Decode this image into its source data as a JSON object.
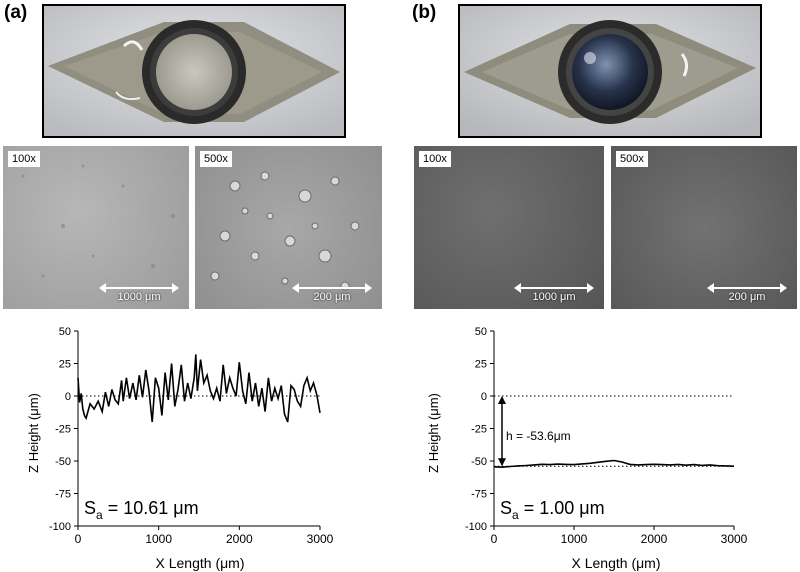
{
  "panels": [
    {
      "label": "(a)",
      "sem": [
        {
          "mag": "100x",
          "scale": "1000 μm"
        },
        {
          "mag": "500x",
          "scale": "200 μm"
        }
      ],
      "sa_label": "S",
      "sa_sub": "a",
      "sa_value": " = 10.61 μm"
    },
    {
      "label": "(b)",
      "sem": [
        {
          "mag": "100x",
          "scale": "1000 μm"
        },
        {
          "mag": "500x",
          "scale": "200 μm"
        }
      ],
      "sa_label": "S",
      "sa_sub": "a",
      "sa_value": " = 1.00 μm",
      "annotation": "h = -53.6μm"
    }
  ],
  "chart_data": [
    {
      "type": "line",
      "xlabel": "X Length (μm)",
      "ylabel": "Z Height (μm)",
      "xlim": [
        0,
        3000
      ],
      "ylim": [
        -100,
        50
      ],
      "xticks": [
        0,
        1000,
        2000,
        3000
      ],
      "yticks": [
        50,
        25,
        0,
        -25,
        -50,
        -75,
        -100
      ],
      "reference_lines": [
        0
      ],
      "series": [
        {
          "x": [
            0,
            20,
            40,
            60,
            80,
            100,
            150,
            200,
            250,
            300,
            340,
            380,
            420,
            460,
            500,
            540,
            560,
            600,
            640,
            680,
            720,
            760,
            800,
            840,
            880,
            920,
            960,
            1000,
            1040,
            1080,
            1120,
            1160,
            1200,
            1240,
            1280,
            1320,
            1360,
            1400,
            1440,
            1460,
            1480,
            1520,
            1560,
            1600,
            1640,
            1680,
            1720,
            1760,
            1800,
            1840,
            1880,
            1920,
            1960,
            2000,
            2040,
            2080,
            2120,
            2160,
            2200,
            2240,
            2280,
            2320,
            2360,
            2400,
            2440,
            2480,
            2520,
            2560,
            2600,
            2640,
            2680,
            2720,
            2760,
            2800,
            2840,
            2880,
            2920,
            2960,
            3000
          ],
          "y": [
            14,
            -5,
            2,
            -10,
            -15,
            -17,
            -6,
            -10,
            -4,
            -12,
            3,
            -8,
            5,
            -3,
            -6,
            12,
            -4,
            14,
            -2,
            10,
            -3,
            16,
            -1,
            20,
            4,
            -20,
            14,
            6,
            -15,
            18,
            -3,
            25,
            -8,
            5,
            24,
            -4,
            10,
            -2,
            14,
            32,
            4,
            28,
            10,
            16,
            4,
            -2,
            6,
            -4,
            24,
            2,
            14,
            6,
            0,
            26,
            4,
            -6,
            18,
            -4,
            10,
            -8,
            6,
            -12,
            14,
            -4,
            6,
            -2,
            8,
            -14,
            -20,
            8,
            5,
            -4,
            -8,
            8,
            14,
            4,
            10,
            1,
            -13
          ]
        }
      ]
    },
    {
      "type": "line",
      "xlabel": "X Length (μm)",
      "ylabel": "Z Height (μm)",
      "xlim": [
        0,
        3000
      ],
      "ylim": [
        -100,
        50
      ],
      "xticks": [
        0,
        1000,
        2000,
        3000
      ],
      "yticks": [
        50,
        25,
        0,
        -25,
        -50,
        -75,
        -100
      ],
      "reference_lines": [
        0,
        -54
      ],
      "series": [
        {
          "x": [
            0,
            100,
            200,
            300,
            400,
            500,
            600,
            700,
            800,
            900,
            1000,
            1100,
            1200,
            1300,
            1400,
            1500,
            1600,
            1700,
            1800,
            1900,
            2000,
            2100,
            2200,
            2300,
            2400,
            2500,
            2600,
            2700,
            2800,
            2900,
            3000
          ],
          "y": [
            -54.5,
            -54.8,
            -54.2,
            -53.8,
            -53.5,
            -53.0,
            -52.5,
            -52.8,
            -52.4,
            -52.6,
            -52.8,
            -52.2,
            -51.8,
            -51.0,
            -50.2,
            -49.6,
            -50.8,
            -52.6,
            -53.0,
            -52.8,
            -52.5,
            -52.8,
            -53.0,
            -52.6,
            -53.2,
            -52.8,
            -53.4,
            -53.0,
            -53.6,
            -53.8,
            -54.0
          ]
        }
      ]
    }
  ]
}
